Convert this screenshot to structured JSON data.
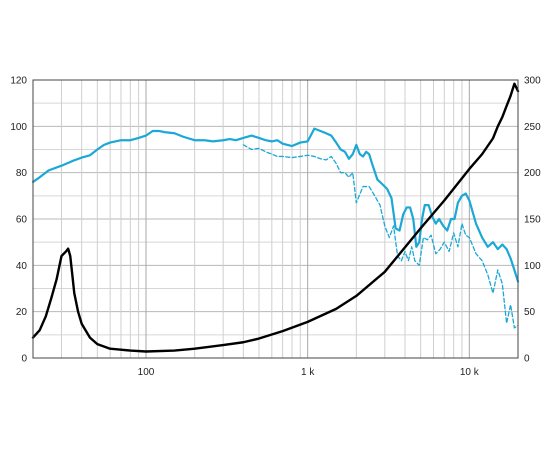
{
  "chart_data": {
    "type": "line",
    "x_scale": "log",
    "x_unit": "Hz",
    "xlim": [
      20,
      20000
    ],
    "ylim_left": [
      0,
      120
    ],
    "ylim_right": [
      0,
      300
    ],
    "grid": true,
    "x_ticks": [
      {
        "value": 100,
        "label": "100"
      },
      {
        "value": 1000,
        "label": "1 k"
      },
      {
        "value": 10000,
        "label": "10 k"
      }
    ],
    "y_ticks_left": [
      {
        "value": 0,
        "label": "0"
      },
      {
        "value": 20,
        "label": "20"
      },
      {
        "value": 40,
        "label": "40"
      },
      {
        "value": 60,
        "label": "60"
      },
      {
        "value": 80,
        "label": "80"
      },
      {
        "value": 100,
        "label": "100"
      },
      {
        "value": 120,
        "label": "120"
      }
    ],
    "y_ticks_right": [
      {
        "value": 0,
        "label": "0"
      },
      {
        "value": 50,
        "label": "50"
      },
      {
        "value": 100,
        "label": "100"
      },
      {
        "value": 150,
        "label": "150"
      },
      {
        "value": 200,
        "label": "200"
      },
      {
        "value": 250,
        "label": "250"
      },
      {
        "value": 300,
        "label": "300"
      }
    ],
    "series": [
      {
        "axis": "left",
        "color": "#1ba8d6",
        "style": "solid",
        "points": [
          [
            20,
            76
          ],
          [
            22,
            78
          ],
          [
            25,
            81
          ],
          [
            30,
            83
          ],
          [
            35,
            85
          ],
          [
            40,
            86.5
          ],
          [
            45,
            87.5
          ],
          [
            50,
            90
          ],
          [
            55,
            92
          ],
          [
            60,
            93
          ],
          [
            70,
            94
          ],
          [
            80,
            94
          ],
          [
            90,
            95
          ],
          [
            100,
            96
          ],
          [
            110,
            98
          ],
          [
            120,
            98
          ],
          [
            130,
            97.5
          ],
          [
            150,
            97
          ],
          [
            170,
            95.5
          ],
          [
            200,
            94
          ],
          [
            230,
            94
          ],
          [
            260,
            93.5
          ],
          [
            300,
            94
          ],
          [
            330,
            94.5
          ],
          [
            360,
            94
          ],
          [
            400,
            95
          ],
          [
            450,
            96
          ],
          [
            500,
            95
          ],
          [
            550,
            94
          ],
          [
            600,
            93.5
          ],
          [
            650,
            94
          ],
          [
            700,
            92.5
          ],
          [
            800,
            91.5
          ],
          [
            900,
            93
          ],
          [
            1000,
            93.5
          ],
          [
            1100,
            99
          ],
          [
            1200,
            98
          ],
          [
            1300,
            97
          ],
          [
            1400,
            96
          ],
          [
            1500,
            93
          ],
          [
            1600,
            90
          ],
          [
            1700,
            89
          ],
          [
            1800,
            86
          ],
          [
            1900,
            88
          ],
          [
            2000,
            92
          ],
          [
            2100,
            88
          ],
          [
            2200,
            87
          ],
          [
            2300,
            89
          ],
          [
            2400,
            88
          ],
          [
            2500,
            84
          ],
          [
            2700,
            77
          ],
          [
            2900,
            75
          ],
          [
            3100,
            73
          ],
          [
            3300,
            69
          ],
          [
            3500,
            56
          ],
          [
            3700,
            55
          ],
          [
            3900,
            62
          ],
          [
            4100,
            65
          ],
          [
            4300,
            65
          ],
          [
            4500,
            60
          ],
          [
            4700,
            48
          ],
          [
            4900,
            50
          ],
          [
            5100,
            60
          ],
          [
            5300,
            66
          ],
          [
            5600,
            66
          ],
          [
            5900,
            61
          ],
          [
            6200,
            58
          ],
          [
            6500,
            60
          ],
          [
            6900,
            57
          ],
          [
            7300,
            55
          ],
          [
            7700,
            60
          ],
          [
            8100,
            60
          ],
          [
            8500,
            67
          ],
          [
            9000,
            70
          ],
          [
            9500,
            71
          ],
          [
            10000,
            68
          ],
          [
            11000,
            58
          ],
          [
            12000,
            52
          ],
          [
            13000,
            48
          ],
          [
            14000,
            50
          ],
          [
            15000,
            47
          ],
          [
            16000,
            49
          ],
          [
            17000,
            47
          ],
          [
            18000,
            43
          ],
          [
            19000,
            38
          ],
          [
            20000,
            33
          ]
        ]
      },
      {
        "axis": "left",
        "color": "#1ba8d6",
        "style": "dashed",
        "points": [
          [
            400,
            92
          ],
          [
            450,
            90
          ],
          [
            500,
            90.5
          ],
          [
            550,
            89
          ],
          [
            600,
            88
          ],
          [
            650,
            87
          ],
          [
            700,
            87
          ],
          [
            800,
            86.5
          ],
          [
            900,
            87
          ],
          [
            1000,
            87.5
          ],
          [
            1100,
            87
          ],
          [
            1200,
            86
          ],
          [
            1300,
            85.5
          ],
          [
            1400,
            87
          ],
          [
            1500,
            84
          ],
          [
            1600,
            80
          ],
          [
            1700,
            80
          ],
          [
            1800,
            78
          ],
          [
            1900,
            80
          ],
          [
            2000,
            67
          ],
          [
            2200,
            74
          ],
          [
            2400,
            74
          ],
          [
            2600,
            70
          ],
          [
            2800,
            66
          ],
          [
            3000,
            57
          ],
          [
            3200,
            52
          ],
          [
            3400,
            57
          ],
          [
            3600,
            44
          ],
          [
            3800,
            42
          ],
          [
            4000,
            46
          ],
          [
            4200,
            42
          ],
          [
            4400,
            48
          ],
          [
            4600,
            42
          ],
          [
            4900,
            40
          ],
          [
            5200,
            52
          ],
          [
            5500,
            51
          ],
          [
            5800,
            53
          ],
          [
            6200,
            45
          ],
          [
            6600,
            47
          ],
          [
            7000,
            50
          ],
          [
            7500,
            46
          ],
          [
            8000,
            54
          ],
          [
            8500,
            48
          ],
          [
            9000,
            58
          ],
          [
            9500,
            53
          ],
          [
            10000,
            52
          ],
          [
            11000,
            45
          ],
          [
            12000,
            42
          ],
          [
            13000,
            36
          ],
          [
            14000,
            28
          ],
          [
            15000,
            38
          ],
          [
            16000,
            32
          ],
          [
            17000,
            15
          ],
          [
            18000,
            23
          ],
          [
            19000,
            13
          ],
          [
            20000,
            14
          ]
        ]
      },
      {
        "axis": "right",
        "color": "#000000",
        "style": "solid",
        "points": [
          [
            20,
            22
          ],
          [
            22,
            30
          ],
          [
            24,
            45
          ],
          [
            26,
            65
          ],
          [
            28,
            85
          ],
          [
            30,
            110
          ],
          [
            32,
            115
          ],
          [
            33,
            118
          ],
          [
            34,
            110
          ],
          [
            35,
            90
          ],
          [
            36,
            70
          ],
          [
            38,
            50
          ],
          [
            40,
            37
          ],
          [
            45,
            22
          ],
          [
            50,
            15
          ],
          [
            60,
            10
          ],
          [
            70,
            9
          ],
          [
            80,
            8
          ],
          [
            100,
            7
          ],
          [
            150,
            8
          ],
          [
            200,
            10
          ],
          [
            300,
            14
          ],
          [
            400,
            17
          ],
          [
            500,
            21
          ],
          [
            700,
            29
          ],
          [
            1000,
            39
          ],
          [
            1500,
            53
          ],
          [
            2000,
            67
          ],
          [
            3000,
            93
          ],
          [
            5000,
            140
          ],
          [
            7000,
            170
          ],
          [
            10000,
            204
          ],
          [
            12000,
            220
          ],
          [
            14000,
            237
          ],
          [
            15000,
            250
          ],
          [
            16000,
            260
          ],
          [
            17000,
            272
          ],
          [
            18000,
            283
          ],
          [
            19000,
            296
          ],
          [
            20000,
            288
          ]
        ]
      }
    ]
  }
}
